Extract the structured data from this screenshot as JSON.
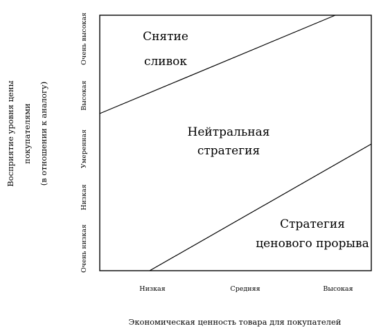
{
  "diagram": {
    "regions": {
      "skimming": {
        "line1": "Снятие",
        "line2": "сливок"
      },
      "neutral": {
        "line1": "Нейтральная",
        "line2": "стратегия"
      },
      "penetration": {
        "line1": "Стратегия",
        "line2": "ценового прорыва"
      }
    },
    "x_axis": {
      "title": "Экономическая ценность товара для покупателей",
      "ticks": [
        "Низкая",
        "Средняя",
        "Высокая"
      ]
    },
    "y_axis": {
      "title_lines": [
        "Восприятие уровня цены",
        "покупателями",
        "(в отношении к аналогу)"
      ],
      "ticks": [
        "Очень низкая",
        "Низкая",
        "Умеренная",
        "Высокая",
        "Очень высокая"
      ]
    }
  }
}
